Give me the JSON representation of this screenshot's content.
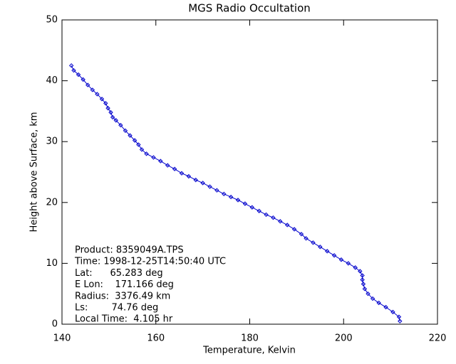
{
  "chart_data": {
    "type": "line",
    "title": "MGS Radio Occultation",
    "x_label": "Temperature, Kelvin",
    "y_label": "Height above Surface, km",
    "xlim": [
      140,
      220
    ],
    "ylim": [
      0,
      50
    ],
    "xticks": [
      140,
      160,
      180,
      200,
      220
    ],
    "yticks": [
      0,
      10,
      20,
      30,
      40,
      50
    ],
    "annotations": [
      "Product: 8359049A.TPS",
      "Time: 1998-12-25T14:50:40 UTC",
      "Lat:      65.283 deg",
      "E Lon:    171.166 deg",
      "Radius:  3376.49 km",
      "Ls:        74.76 deg",
      "Local Time:  4.105 hr"
    ],
    "series": [
      {
        "color": "#0000cc",
        "x": [
          142.0,
          142.5,
          143.5,
          144.5,
          145.5,
          146.5,
          147.5,
          148.5,
          149.3,
          149.8,
          150.4,
          150.8,
          151.5,
          152.5,
          153.5,
          154.5,
          155.5,
          156.3,
          157.0,
          158.0,
          159.5,
          161.0,
          162.5,
          164.0,
          165.5,
          167.0,
          168.5,
          170.0,
          171.5,
          173.0,
          174.5,
          176.0,
          177.5,
          179.0,
          180.5,
          182.0,
          183.5,
          185.0,
          186.5,
          188.0,
          189.5,
          191.0,
          192.0,
          193.5,
          195.0,
          196.5,
          198.0,
          199.5,
          201.0,
          202.5,
          203.5,
          204.0,
          204.0,
          204.2,
          204.5,
          205.2,
          206.2,
          207.5,
          209.0,
          210.5,
          211.8,
          212.0
        ],
        "values": [
          42.5,
          41.7,
          41.0,
          40.2,
          39.3,
          38.5,
          37.8,
          37.0,
          36.3,
          35.5,
          34.8,
          34.0,
          33.5,
          32.7,
          31.8,
          31.0,
          30.2,
          29.5,
          28.7,
          28.0,
          27.4,
          26.8,
          26.1,
          25.5,
          24.8,
          24.3,
          23.7,
          23.2,
          22.6,
          22.0,
          21.4,
          20.9,
          20.4,
          19.8,
          19.2,
          18.6,
          18.0,
          17.5,
          16.9,
          16.3,
          15.6,
          14.8,
          14.1,
          13.4,
          12.7,
          12.0,
          11.3,
          10.6,
          10.0,
          9.3,
          8.7,
          8.0,
          7.3,
          6.6,
          5.8,
          5.0,
          4.2,
          3.5,
          2.8,
          2.0,
          1.2,
          0.5
        ]
      }
    ]
  }
}
